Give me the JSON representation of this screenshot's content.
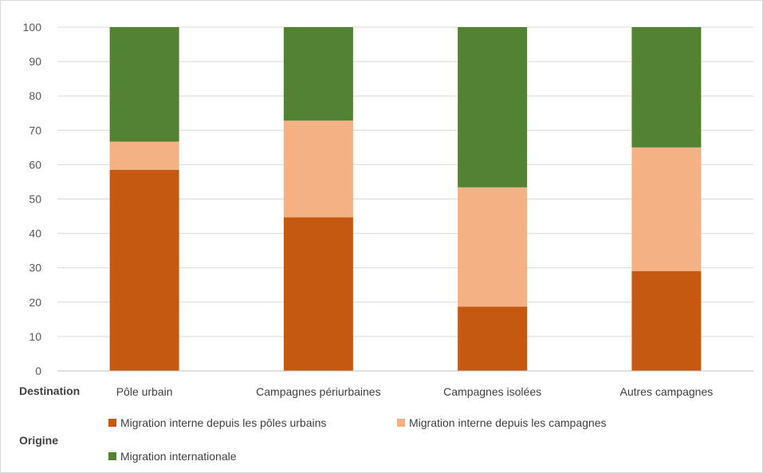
{
  "chart_data": {
    "type": "bar",
    "stacked": true,
    "categories": [
      "Pôle urbain",
      "Campagnes périurbaines",
      "Campagnes isolées",
      "Autres campagnes"
    ],
    "series": [
      {
        "name": "Migration interne depuis les pôles urbains",
        "values": [
          58.5,
          44.7,
          18.7,
          29.0
        ],
        "color": "#c65911"
      },
      {
        "name": "Migration interne depuis les campagnes",
        "values": [
          8.2,
          28.1,
          34.7,
          36.0
        ],
        "color": "#f4b183"
      },
      {
        "name": "Migration internationale",
        "values": [
          33.3,
          27.2,
          46.6,
          35.0
        ],
        "color": "#548235"
      }
    ],
    "ylim": [
      0,
      100
    ],
    "yticks": [
      0,
      10,
      20,
      30,
      40,
      50,
      60,
      70,
      80,
      90,
      100
    ],
    "grid": true,
    "xlabel": "Destination",
    "legend_title": "Origine",
    "legend_position": "bottom"
  }
}
